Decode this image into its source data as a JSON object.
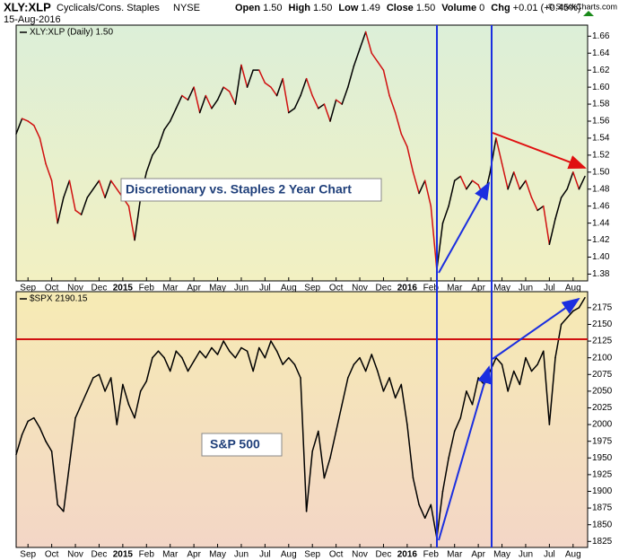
{
  "header": {
    "symbol": "XLY:XLP",
    "name": "Cyclicals/Cons. Staples",
    "exchange": "NYSE",
    "date": "15-Aug-2016",
    "credit": "© StockCharts.com",
    "quote": [
      [
        "Open",
        "1.50"
      ],
      [
        "High",
        "1.50"
      ],
      [
        "Low",
        "1.49"
      ],
      [
        "Close",
        "1.50"
      ],
      [
        "Volume",
        "0"
      ],
      [
        "Chg",
        "+0.01 (+0.45%)"
      ]
    ]
  },
  "chart_data": [
    {
      "type": "line",
      "annotation": "Discretionary vs. Staples 2 Year Chart",
      "categories": [
        null,
        null,
        "Sep",
        null,
        null,
        null,
        "Oct",
        null,
        null,
        null,
        "Nov",
        null,
        null,
        null,
        "Dec",
        null,
        null,
        null,
        "2015",
        null,
        null,
        null,
        "Feb",
        null,
        null,
        null,
        "Mar",
        null,
        null,
        null,
        "Apr",
        null,
        null,
        null,
        "May",
        null,
        null,
        null,
        "Jun",
        null,
        null,
        null,
        "Jul",
        null,
        null,
        null,
        "Aug",
        null,
        null,
        null,
        "Sep",
        null,
        null,
        null,
        "Oct",
        null,
        null,
        null,
        "Nov",
        null,
        null,
        null,
        "Dec",
        null,
        null,
        null,
        "2016",
        null,
        null,
        null,
        "Feb",
        null,
        null,
        null,
        "Mar",
        null,
        null,
        null,
        "Apr",
        null,
        null,
        null,
        "May",
        null,
        null,
        null,
        "Jun",
        null,
        null,
        null,
        "Jul",
        null,
        null,
        null,
        "Aug",
        null,
        null
      ],
      "series": [
        {
          "name": "XLY:XLP (Daily) 1.50",
          "up_color": "#000000",
          "down_color": "#d01010",
          "values": [
            1.545,
            1.563,
            1.56,
            1.555,
            1.54,
            1.51,
            1.49,
            1.44,
            1.47,
            1.49,
            1.455,
            1.45,
            1.47,
            1.48,
            1.49,
            1.47,
            1.49,
            1.48,
            1.47,
            1.46,
            1.42,
            1.47,
            1.5,
            1.52,
            1.53,
            1.55,
            1.56,
            1.575,
            1.59,
            1.585,
            1.6,
            1.57,
            1.59,
            1.575,
            1.585,
            1.6,
            1.595,
            1.58,
            1.626,
            1.6,
            1.62,
            1.62,
            1.605,
            1.6,
            1.59,
            1.61,
            1.57,
            1.575,
            1.59,
            1.61,
            1.59,
            1.575,
            1.58,
            1.56,
            1.585,
            1.58,
            1.6,
            1.625,
            1.645,
            1.665,
            1.64,
            1.63,
            1.62,
            1.59,
            1.57,
            1.545,
            1.53,
            1.5,
            1.475,
            1.49,
            1.46,
            1.385,
            1.44,
            1.46,
            1.49,
            1.495,
            1.48,
            1.49,
            1.485,
            1.47,
            1.5,
            1.54,
            1.51,
            1.48,
            1.5,
            1.48,
            1.49,
            1.47,
            1.455,
            1.46,
            1.415,
            1.445,
            1.47,
            1.48,
            1.5,
            1.48,
            1.495
          ]
        }
      ],
      "ylim": [
        1.372,
        1.673
      ],
      "yticks": [
        1.38,
        {
          "value": 1.4,
          "label": "1.40"
        },
        1.42,
        1.44,
        1.46,
        1.48,
        {
          "value": 1.5,
          "label": "1.50"
        },
        1.52,
        1.54,
        1.56,
        1.58,
        {
          "value": 1.6,
          "label": "1.60"
        },
        1.62,
        1.64,
        1.66
      ]
    },
    {
      "type": "line",
      "annotation": "S&P 500",
      "categories": [
        null,
        null,
        "Sep",
        null,
        null,
        null,
        "Oct",
        null,
        null,
        null,
        "Nov",
        null,
        null,
        null,
        "Dec",
        null,
        null,
        null,
        "2015",
        null,
        null,
        null,
        "Feb",
        null,
        null,
        null,
        "Mar",
        null,
        null,
        null,
        "Apr",
        null,
        null,
        null,
        "May",
        null,
        null,
        null,
        "Jun",
        null,
        null,
        null,
        "Jul",
        null,
        null,
        null,
        "Aug",
        null,
        null,
        null,
        "Sep",
        null,
        null,
        null,
        "Oct",
        null,
        null,
        null,
        "Nov",
        null,
        null,
        null,
        "Dec",
        null,
        null,
        null,
        "2016",
        null,
        null,
        null,
        "Feb",
        null,
        null,
        null,
        "Mar",
        null,
        null,
        null,
        "Apr",
        null,
        null,
        null,
        "May",
        null,
        null,
        null,
        "Jun",
        null,
        null,
        null,
        "Jul",
        null,
        null,
        null,
        "Aug",
        null,
        null
      ],
      "series": [
        {
          "name": "$SPX 2190.15",
          "up_color": "#000000",
          "down_color": "#000000",
          "values": [
            1955,
            1985,
            2005,
            2010,
            1995,
            1975,
            1960,
            1880,
            1870,
            1940,
            2010,
            2030,
            2050,
            2070,
            2075,
            2050,
            2070,
            2000,
            2060,
            2030,
            2010,
            2050,
            2065,
            2100,
            2110,
            2100,
            2080,
            2110,
            2100,
            2080,
            2095,
            2110,
            2100,
            2115,
            2105,
            2125,
            2110,
            2100,
            2115,
            2110,
            2080,
            2115,
            2100,
            2125,
            2110,
            2090,
            2100,
            2090,
            2070,
            1870,
            1960,
            1990,
            1920,
            1950,
            1990,
            2030,
            2070,
            2090,
            2100,
            2080,
            2105,
            2080,
            2050,
            2070,
            2040,
            2060,
            2000,
            1920,
            1880,
            1860,
            1880,
            1830,
            1900,
            1950,
            1990,
            2010,
            2050,
            2030,
            2070,
            2060,
            2080,
            2100,
            2090,
            2050,
            2080,
            2060,
            2100,
            2080,
            2090,
            2110,
            2000,
            2100,
            2150,
            2160,
            2170,
            2175,
            2190
          ]
        }
      ],
      "ylim": [
        1816,
        2199
      ],
      "yticks": [
        1825,
        1850,
        1875,
        1900,
        1925,
        1950,
        1975,
        2000,
        2025,
        2050,
        2075,
        2100,
        2125,
        2150,
        2175
      ]
    }
  ]
}
